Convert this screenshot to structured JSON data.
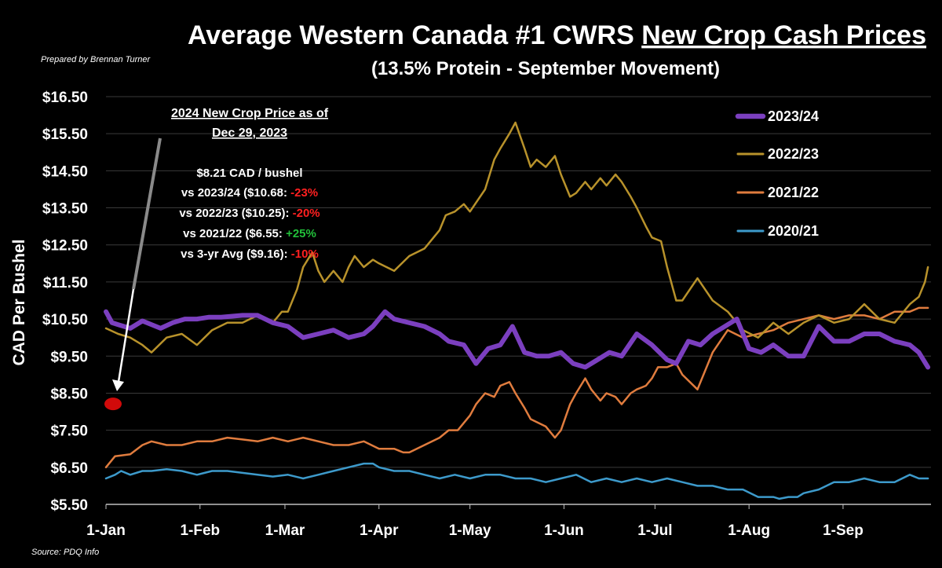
{
  "header": {
    "title_plain": "Average Western Canada #1 CWRS ",
    "title_underlined": "New Crop Cash Prices",
    "subtitle": "(13.5% Protein - September Movement)",
    "prepared_by": "Prepared by Brennan Turner",
    "source": "Source: PDQ Info"
  },
  "annotation": {
    "heading_line1": "2024 New Crop Price as of",
    "heading_line2": "Dec 29, 2023",
    "price": "$8.21 CAD / bushel",
    "lines": [
      {
        "label": "vs 2023/24 ($10.68: ",
        "change": "-23%",
        "color": "#ff2020"
      },
      {
        "label": "vs 2022/23 ($10.25): ",
        "change": "-20%",
        "color": "#ff2020"
      },
      {
        "label": "vs 2021/22 ($6.55: ",
        "change": "+25%",
        "color": "#22c03a"
      },
      {
        "label": "vs 3-yr Avg ($9.16): ",
        "change": "-10%",
        "color": "#ff2020"
      }
    ],
    "marker_value": 8.21,
    "marker_color": "#d10a0a"
  },
  "chart_data": {
    "type": "line",
    "title": "Average Western Canada #1 CWRS New Crop Cash Prices",
    "subtitle": "(13.5% Protein - September Movement)",
    "xlabel": "",
    "ylabel": "CAD Per Bushel",
    "x_ticks": [
      "1-Jan",
      "1-Feb",
      "1-Mar",
      "1-Apr",
      "1-May",
      "1-Jun",
      "1-Jul",
      "1-Aug",
      "1-Sep"
    ],
    "x_tick_days": [
      0,
      31,
      59,
      90,
      120,
      151,
      181,
      212,
      243
    ],
    "xlim_days": [
      0,
      272
    ],
    "y_ticks": [
      "$5.50",
      "$6.50",
      "$7.50",
      "$8.50",
      "$9.50",
      "$10.50",
      "$11.50",
      "$12.50",
      "$13.50",
      "$14.50",
      "$15.50",
      "$16.50"
    ],
    "ylim": [
      5.5,
      16.5
    ],
    "grid": "horizontal",
    "legend_position": "top-right",
    "series": [
      {
        "name": "2023/24",
        "color": "#7b3fbf",
        "width": 6,
        "x": [
          0,
          2,
          4,
          8,
          12,
          18,
          22,
          26,
          30,
          34,
          38,
          45,
          50,
          55,
          60,
          65,
          70,
          75,
          80,
          85,
          88,
          92,
          95,
          100,
          105,
          110,
          113,
          118,
          122,
          126,
          130,
          134,
          138,
          142,
          146,
          150,
          154,
          158,
          162,
          166,
          170,
          175,
          180,
          185,
          188,
          192,
          196,
          200,
          204,
          208,
          212,
          216,
          220,
          225,
          230,
          235,
          240,
          245,
          250,
          255,
          260,
          265,
          268,
          271
        ],
        "y": [
          10.7,
          10.4,
          10.35,
          10.25,
          10.45,
          10.25,
          10.4,
          10.5,
          10.5,
          10.55,
          10.55,
          10.6,
          10.6,
          10.4,
          10.3,
          10.0,
          10.1,
          10.2,
          10.0,
          10.1,
          10.3,
          10.7,
          10.5,
          10.4,
          10.3,
          10.1,
          9.9,
          9.8,
          9.3,
          9.7,
          9.8,
          10.3,
          9.6,
          9.5,
          9.5,
          9.6,
          9.3,
          9.2,
          9.4,
          9.6,
          9.5,
          10.1,
          9.8,
          9.4,
          9.3,
          9.9,
          9.8,
          10.1,
          10.3,
          10.5,
          9.7,
          9.6,
          9.8,
          9.5,
          9.5,
          10.3,
          9.9,
          9.9,
          10.1,
          10.1,
          9.9,
          9.8,
          9.6,
          9.2
        ]
      },
      {
        "name": "2022/23",
        "color": "#b8922b",
        "width": 2.5,
        "x": [
          0,
          4,
          8,
          12,
          15,
          20,
          25,
          30,
          35,
          40,
          45,
          50,
          55,
          58,
          60,
          63,
          65,
          68,
          70,
          72,
          75,
          78,
          80,
          82,
          85,
          88,
          90,
          95,
          100,
          105,
          110,
          112,
          115,
          118,
          120,
          125,
          128,
          130,
          133,
          135,
          138,
          140,
          142,
          145,
          148,
          150,
          153,
          155,
          158,
          160,
          163,
          165,
          168,
          170,
          173,
          175,
          178,
          180,
          183,
          185,
          188,
          190,
          195,
          200,
          205,
          210,
          215,
          220,
          225,
          230,
          235,
          240,
          245,
          250,
          255,
          260,
          265,
          268,
          270,
          271
        ],
        "y": [
          10.25,
          10.1,
          10.0,
          9.8,
          9.6,
          10.0,
          10.1,
          9.8,
          10.2,
          10.4,
          10.4,
          10.6,
          10.4,
          10.7,
          10.7,
          11.3,
          11.9,
          12.3,
          11.8,
          11.5,
          11.8,
          11.5,
          11.9,
          12.2,
          11.9,
          12.1,
          12.0,
          11.8,
          12.2,
          12.4,
          12.9,
          13.3,
          13.4,
          13.6,
          13.4,
          14.0,
          14.8,
          15.1,
          15.5,
          15.8,
          15.1,
          14.6,
          14.8,
          14.6,
          14.9,
          14.4,
          13.8,
          13.9,
          14.2,
          14.0,
          14.3,
          14.1,
          14.4,
          14.2,
          13.8,
          13.5,
          13.0,
          12.7,
          12.6,
          11.9,
          11.0,
          11.0,
          11.6,
          11.0,
          10.7,
          10.2,
          10.0,
          10.4,
          10.1,
          10.4,
          10.6,
          10.4,
          10.5,
          10.9,
          10.5,
          10.4,
          10.9,
          11.1,
          11.5,
          11.9
        ]
      },
      {
        "name": "2021/22",
        "color": "#e07c3e",
        "width": 2.5,
        "x": [
          0,
          3,
          8,
          12,
          15,
          20,
          25,
          30,
          35,
          40,
          45,
          50,
          55,
          60,
          65,
          70,
          75,
          80,
          85,
          90,
          95,
          98,
          100,
          105,
          110,
          113,
          116,
          120,
          122,
          125,
          128,
          130,
          133,
          135,
          138,
          140,
          145,
          148,
          150,
          153,
          155,
          158,
          160,
          163,
          165,
          168,
          170,
          173,
          175,
          178,
          180,
          182,
          185,
          188,
          190,
          195,
          200,
          205,
          210,
          215,
          220,
          225,
          230,
          235,
          240,
          245,
          250,
          255,
          260,
          265,
          268,
          271
        ],
        "y": [
          6.5,
          6.8,
          6.85,
          7.1,
          7.2,
          7.1,
          7.1,
          7.2,
          7.2,
          7.3,
          7.25,
          7.2,
          7.3,
          7.2,
          7.3,
          7.2,
          7.1,
          7.1,
          7.2,
          7.0,
          7.0,
          6.9,
          6.9,
          7.1,
          7.3,
          7.5,
          7.5,
          7.9,
          8.2,
          8.5,
          8.4,
          8.7,
          8.8,
          8.5,
          8.1,
          7.8,
          7.6,
          7.3,
          7.5,
          8.2,
          8.5,
          8.9,
          8.6,
          8.3,
          8.5,
          8.4,
          8.2,
          8.5,
          8.6,
          8.7,
          8.9,
          9.2,
          9.2,
          9.3,
          9.0,
          8.6,
          9.6,
          10.2,
          10.0,
          10.1,
          10.2,
          10.4,
          10.5,
          10.6,
          10.5,
          10.6,
          10.6,
          10.5,
          10.7,
          10.7,
          10.8,
          10.8
        ]
      },
      {
        "name": "2020/21",
        "color": "#3d9acb",
        "width": 2.5,
        "x": [
          0,
          3,
          5,
          8,
          12,
          15,
          20,
          25,
          30,
          35,
          40,
          45,
          50,
          55,
          60,
          65,
          70,
          75,
          80,
          85,
          88,
          90,
          95,
          100,
          105,
          110,
          115,
          120,
          125,
          130,
          135,
          140,
          145,
          150,
          155,
          160,
          165,
          170,
          175,
          180,
          185,
          190,
          195,
          200,
          205,
          210,
          215,
          220,
          222,
          225,
          228,
          230,
          235,
          240,
          245,
          250,
          255,
          260,
          265,
          268,
          271
        ],
        "y": [
          6.2,
          6.3,
          6.4,
          6.3,
          6.4,
          6.4,
          6.45,
          6.4,
          6.3,
          6.4,
          6.4,
          6.35,
          6.3,
          6.25,
          6.3,
          6.2,
          6.3,
          6.4,
          6.5,
          6.6,
          6.6,
          6.5,
          6.4,
          6.4,
          6.3,
          6.2,
          6.3,
          6.2,
          6.3,
          6.3,
          6.2,
          6.2,
          6.1,
          6.2,
          6.3,
          6.1,
          6.2,
          6.1,
          6.2,
          6.1,
          6.2,
          6.1,
          6.0,
          6.0,
          5.9,
          5.9,
          5.7,
          5.7,
          5.65,
          5.7,
          5.7,
          5.8,
          5.9,
          6.1,
          6.1,
          6.2,
          6.1,
          6.1,
          6.3,
          6.2,
          6.2
        ]
      }
    ]
  }
}
